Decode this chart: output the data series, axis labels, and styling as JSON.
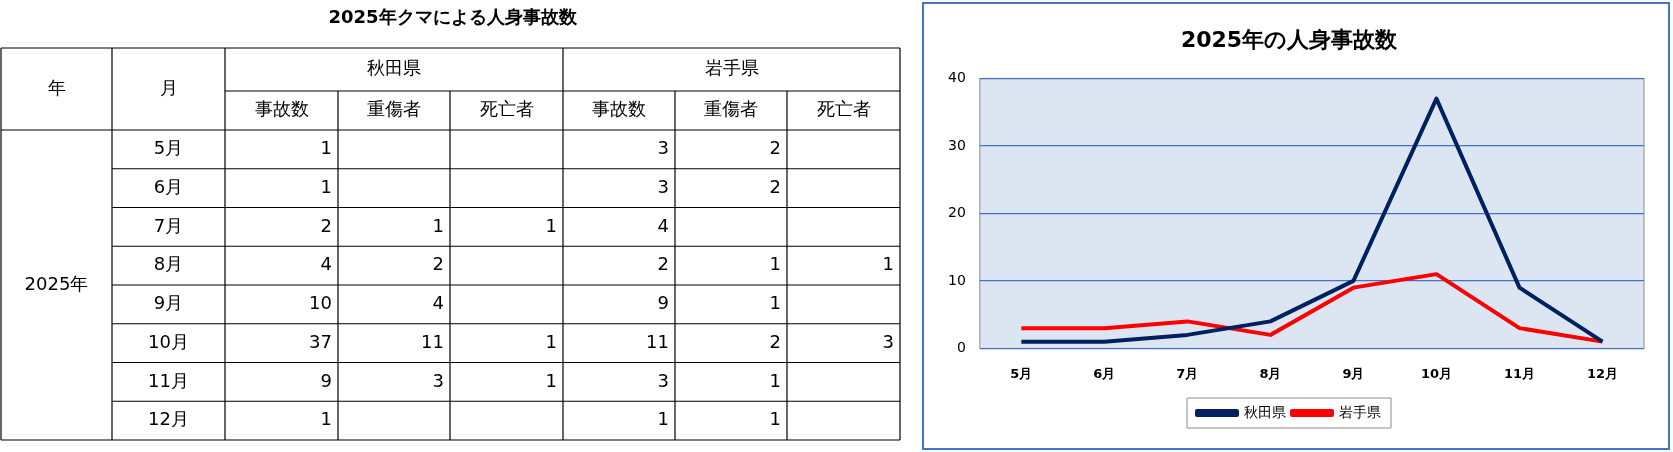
{
  "chart_data": [
    {
      "type": "heatmap",
      "title": "2025年クマによる人身事故数",
      "annotations": [
        "年",
        "月",
        "秋田県",
        "岩手県",
        "2025年"
      ],
      "categories": [
        "事故数",
        "重傷者",
        "死亡者",
        "事故数",
        "重傷者",
        "死亡者"
      ],
      "y_categories": [
        "5月",
        "6月",
        "7月",
        "8月",
        "9月",
        "10月",
        "11月",
        "12月"
      ],
      "cells": [
        [
          1,
          null,
          null,
          3,
          2,
          null
        ],
        [
          1,
          null,
          null,
          3,
          2,
          null
        ],
        [
          2,
          1,
          1,
          4,
          null,
          null
        ],
        [
          4,
          2,
          null,
          2,
          1,
          1
        ],
        [
          10,
          4,
          null,
          9,
          1,
          null
        ],
        [
          37,
          11,
          1,
          11,
          2,
          3
        ],
        [
          9,
          3,
          1,
          3,
          1,
          null
        ],
        [
          1,
          null,
          null,
          1,
          1,
          null
        ]
      ],
      "data_labels": true
    },
    {
      "type": "line",
      "title": "2025年の人身事故数",
      "categories": [
        "5月",
        "6月",
        "7月",
        "8月",
        "9月",
        "10月",
        "11月",
        "12月"
      ],
      "series": [
        {
          "name": "秋田県",
          "color": "#002060",
          "values": [
            1,
            1,
            2,
            4,
            10,
            37,
            9,
            1
          ]
        },
        {
          "name": "岩手県",
          "color": "#ff0000",
          "values": [
            3,
            3,
            4,
            2,
            9,
            11,
            3,
            1
          ]
        }
      ],
      "ylim": [
        0,
        40
      ],
      "yticks": [
        0,
        10,
        20,
        30,
        40
      ],
      "grid": "y",
      "legend": "bottom"
    }
  ]
}
